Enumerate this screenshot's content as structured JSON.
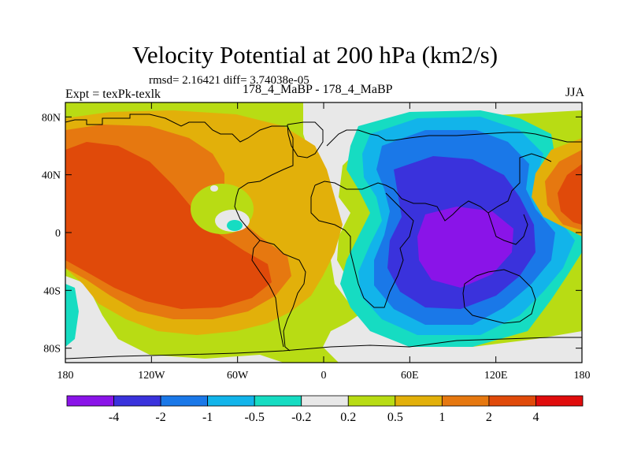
{
  "title": "Velocity Potential at 200 hPa (km2/s)",
  "stats": "rmsd= 2.16421 diff= 3.74038e-05",
  "expt": "Expt = texPk-texlk",
  "cases": "178_4_MaBP - 178_4_MaBP",
  "season": "JJA",
  "chart_data": {
    "type": "heatmap",
    "title": "Velocity Potential at 200 hPa (km2/s)",
    "x_ticks": [
      "180",
      "120W",
      "60W",
      "0",
      "60E",
      "120E",
      "180"
    ],
    "x_tick_lons": [
      -180,
      -120,
      -60,
      0,
      60,
      120,
      180
    ],
    "y_ticks": [
      "80N",
      "40N",
      "0",
      "40S",
      "80S"
    ],
    "y_tick_lats": [
      80,
      40,
      0,
      -40,
      -80
    ],
    "xlim": [
      -180,
      180
    ],
    "ylim": [
      -90,
      90
    ],
    "colorbar": {
      "labels": [
        "-4",
        "-2",
        "-1",
        "-0.5",
        "-0.2",
        "0.2",
        "0.5",
        "1",
        "2",
        "4"
      ],
      "colors": [
        "#8a14e8",
        "#3a32dc",
        "#1a78e8",
        "#12b4ea",
        "#16dcc2",
        "#e8e8e8",
        "#b8dc14",
        "#e2b00a",
        "#e67810",
        "#e04a0a",
        "#e00c0c"
      ]
    },
    "fields": [
      {
        "name": "positive-west-pacific-america",
        "level": "0.5 to 4",
        "max_class": "2 to 4",
        "center_lon": -120,
        "center_lat": -10
      },
      {
        "name": "negative-asia-indian-ocean",
        "level": "-4 to -0.5",
        "min_class": "< -4",
        "center_lon": 90,
        "center_lat": 0
      },
      {
        "name": "positive-east-pacific-edge",
        "level": "1 to 4",
        "center_lon": 175,
        "center_lat": 15
      }
    ]
  }
}
